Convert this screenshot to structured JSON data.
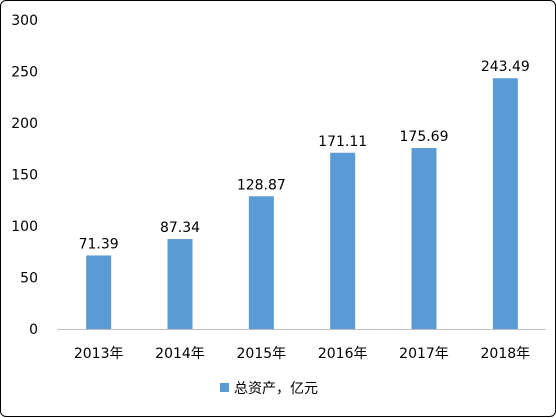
{
  "chart_data": {
    "type": "bar",
    "categories": [
      "2013年",
      "2014年",
      "2015年",
      "2016年",
      "2017年",
      "2018年"
    ],
    "series": [
      {
        "name": "总资产，亿元",
        "values": [
          71.39,
          87.34,
          128.87,
          171.11,
          175.69,
          243.49
        ],
        "labels": [
          "71.39",
          "87.34",
          "128.87",
          "171.11",
          "175.69",
          "243.49"
        ],
        "color": "#5b9bd5"
      }
    ],
    "y_ticks": [
      "0",
      "50",
      "100",
      "150",
      "200",
      "250",
      "300"
    ],
    "ylim": [
      0,
      300
    ],
    "grid": false,
    "legend_position": "bottom",
    "title": "",
    "xlabel": "",
    "ylabel": ""
  }
}
